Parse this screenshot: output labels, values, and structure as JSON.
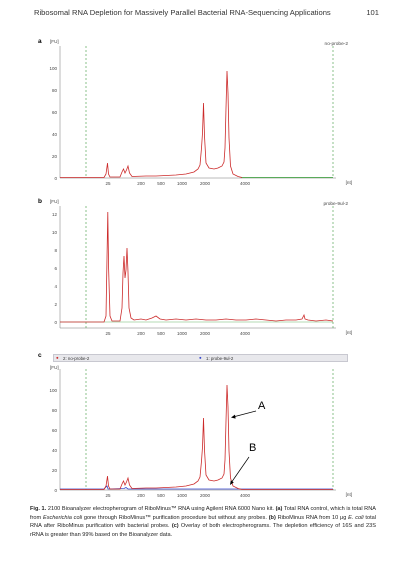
{
  "header": {
    "title": "Ribosomal RNA Depletion for Massively Parallel Bacterial RNA-Sequencing Applications",
    "page_number": "101"
  },
  "axis": {
    "y_unit": "[FU]",
    "x_unit": "[nt]",
    "x_ticks": [
      "25",
      "200",
      "500",
      "1000",
      "2000",
      "4000"
    ]
  },
  "panels": {
    "a": {
      "label": "a",
      "sample": "no-probe-2",
      "y_ticks": [
        "0",
        "20",
        "40",
        "60",
        "80",
        "100"
      ]
    },
    "b": {
      "label": "b",
      "sample": "probe-9ul-2",
      "y_ticks": [
        "0",
        "2",
        "4",
        "6",
        "8",
        "10",
        "12"
      ]
    },
    "c": {
      "label": "c",
      "y_ticks": [
        "0",
        "20",
        "40",
        "60",
        "80",
        "100"
      ],
      "legend": [
        "2: no-probe-2",
        "1: probe-9ul-2"
      ],
      "annotations": [
        "A",
        "B"
      ]
    }
  },
  "colors": {
    "trace_red": "#cc2a2a",
    "trace_blue": "#3344cc",
    "baseline_green": "#2e9a2e",
    "marker_green": "#3f9a3f"
  },
  "caption": {
    "fig": "Fig. 1.",
    "text_1": " 2100 Bioanalyzer electropherogram of RiboMinus™ RNA using Agilent RNA 6000 Nano kit. ",
    "a": "(a)",
    "text_2": " Total RNA control, which is total RNA from ",
    "ecoli_1": "Escherichia coli",
    "text_3": " gone through RiboMinus™ purification procedure but without any probes. ",
    "b": "(b)",
    "text_4": " RiboMinus RNA from 10 μg ",
    "ecoli_2": "E. coli",
    "text_5": " total RNA after RiboMinus purification with bacterial probes. ",
    "c": "(c)",
    "text_6": " Overlay of both electropherograms. The depletion efficiency of 16S and 23S rRNA is greater than 99% based on the Bioanalyzer data."
  }
}
